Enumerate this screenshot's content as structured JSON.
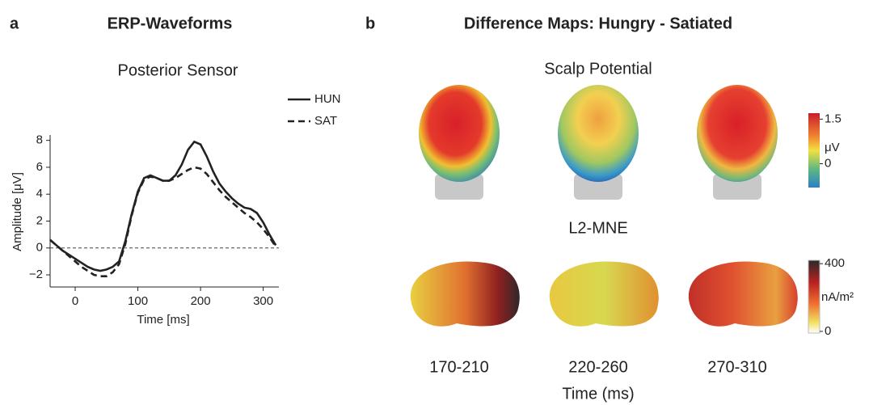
{
  "chart_data": {
    "type": "line",
    "panel_label": "a",
    "title": "ERP-Waveforms",
    "subtitle": "Posterior Sensor",
    "x_label": "Time [ms]",
    "y_label": "Amplitude [μV]",
    "x": [
      -40,
      -30,
      -20,
      -10,
      0,
      10,
      20,
      30,
      40,
      50,
      60,
      70,
      80,
      90,
      100,
      110,
      120,
      130,
      140,
      150,
      160,
      170,
      180,
      190,
      200,
      210,
      220,
      230,
      240,
      250,
      260,
      270,
      280,
      290,
      300,
      310,
      320
    ],
    "series": [
      {
        "name": "HUN",
        "color": "#222222",
        "style": "solid",
        "values": [
          0.6,
          0.2,
          -0.2,
          -0.5,
          -0.8,
          -1.1,
          -1.4,
          -1.6,
          -1.7,
          -1.6,
          -1.4,
          -1.0,
          0.5,
          2.5,
          4.2,
          5.2,
          5.4,
          5.2,
          5.0,
          5.0,
          5.4,
          6.2,
          7.3,
          7.9,
          7.7,
          6.8,
          5.7,
          4.8,
          4.2,
          3.7,
          3.3,
          3.0,
          2.9,
          2.6,
          1.9,
          1.0,
          0.2
        ]
      },
      {
        "name": "SAT",
        "color": "#222222",
        "style": "dashed",
        "values": [
          0.6,
          0.2,
          -0.2,
          -0.6,
          -1.0,
          -1.4,
          -1.7,
          -2.0,
          -2.1,
          -2.1,
          -1.8,
          -1.2,
          0.3,
          2.4,
          4.1,
          5.1,
          5.3,
          5.2,
          5.0,
          5.0,
          5.2,
          5.5,
          5.8,
          6.0,
          5.9,
          5.5,
          4.9,
          4.3,
          3.8,
          3.4,
          3.0,
          2.6,
          2.3,
          1.9,
          1.4,
          0.8,
          0.1
        ]
      }
    ],
    "reference_line": 0,
    "xlim": [
      -40,
      325
    ],
    "ylim": [
      -2.9,
      8.4
    ],
    "xticks": [
      0,
      100,
      200,
      300
    ],
    "yticks": [
      {
        "value": -2,
        "label": "−2"
      },
      0,
      2,
      4,
      6,
      8
    ]
  },
  "panel_b": {
    "panel_label": "b",
    "title": "Difference Maps: Hungry - Satiated",
    "rows": [
      {
        "title": "Scalp Potential",
        "colorbar": {
          "unit": "μV",
          "lim": [
            -0.8,
            1.7
          ],
          "ticks": [
            1.5,
            0
          ]
        }
      },
      {
        "title": "L2-MNE",
        "colorbar": {
          "unit": "nA/m²",
          "lim": [
            -10,
            420
          ],
          "ticks": [
            400,
            0
          ]
        }
      }
    ],
    "time_windows": [
      "170-210",
      "220-260",
      "270-310"
    ],
    "x_label": "Time (ms)"
  }
}
